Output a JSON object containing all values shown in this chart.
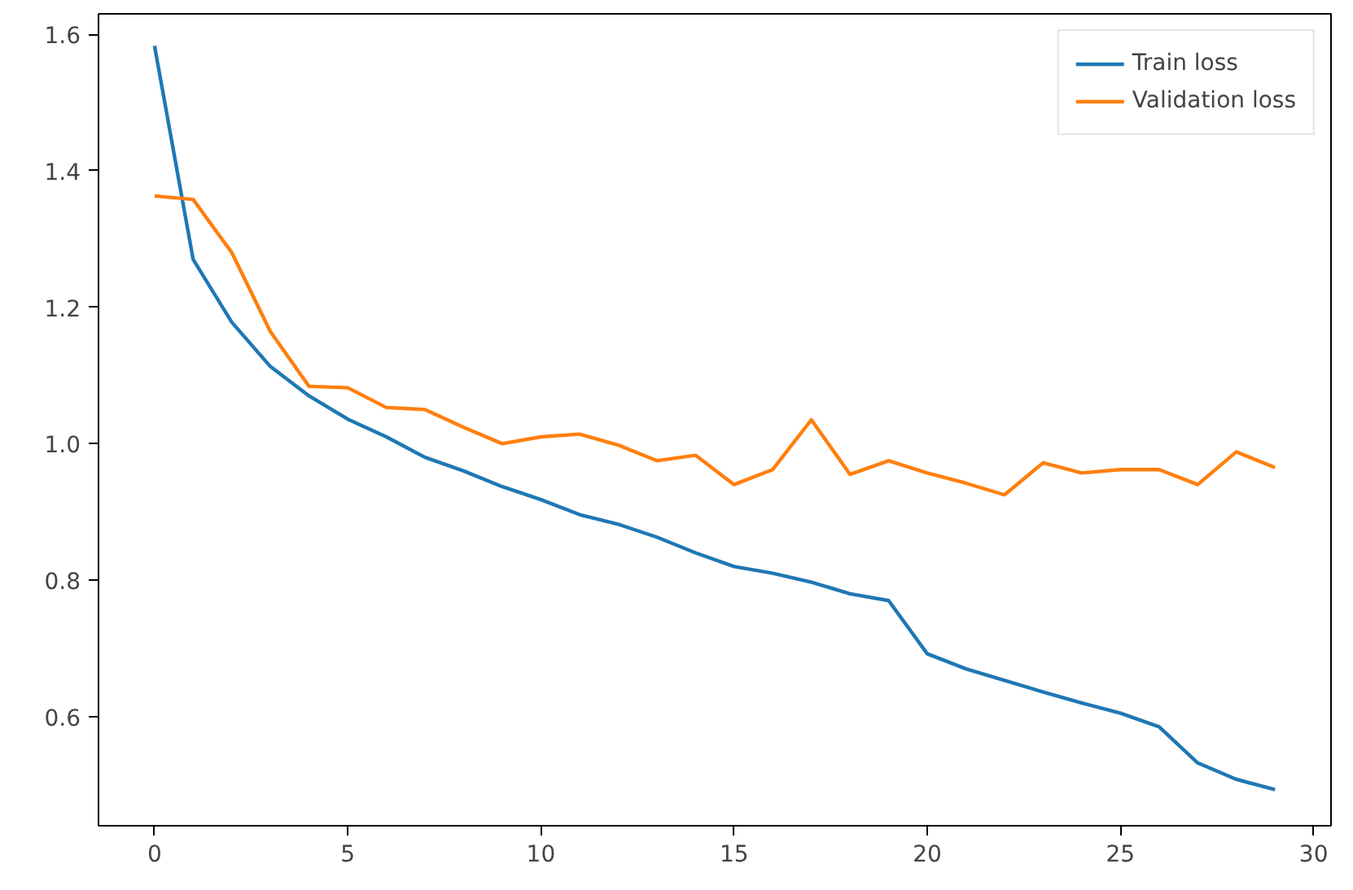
{
  "chart_data": {
    "type": "line",
    "x": [
      0,
      1,
      2,
      3,
      4,
      5,
      6,
      7,
      8,
      9,
      10,
      11,
      12,
      13,
      14,
      15,
      16,
      17,
      18,
      19,
      20,
      21,
      22,
      23,
      24,
      25,
      26,
      27,
      28,
      29
    ],
    "series": [
      {
        "name": "Train loss",
        "color": "#1f77b4",
        "values": [
          1.583,
          1.27,
          1.178,
          1.113,
          1.07,
          1.036,
          1.01,
          0.98,
          0.96,
          0.937,
          0.918,
          0.896,
          0.882,
          0.863,
          0.84,
          0.82,
          0.81,
          0.797,
          0.78,
          0.77,
          0.692,
          0.67,
          0.653,
          0.636,
          0.62,
          0.605,
          0.585,
          0.532,
          0.508,
          0.493
        ]
      },
      {
        "name": "Validation loss",
        "color": "#ff7f0e",
        "values": [
          1.363,
          1.358,
          1.28,
          1.164,
          1.084,
          1.082,
          1.053,
          1.05,
          1.024,
          1.0,
          1.01,
          1.014,
          0.998,
          0.975,
          0.983,
          0.94,
          0.962,
          1.035,
          0.955,
          0.975,
          0.957,
          0.942,
          0.925,
          0.972,
          0.957,
          0.962,
          0.962,
          0.94,
          0.988,
          0.965
        ]
      }
    ],
    "xlim": [
      -1.45,
      30.45
    ],
    "ylim": [
      0.44,
      1.63
    ],
    "xticks": [
      0,
      5,
      10,
      15,
      20,
      25,
      30
    ],
    "yticks": [
      0.6,
      0.8,
      {
        "value": 1,
        "label": "1.0"
      },
      1.2,
      1.4,
      1.6
    ],
    "grid": false,
    "legend": "top right",
    "line_style": "solid",
    "marker": "none"
  }
}
